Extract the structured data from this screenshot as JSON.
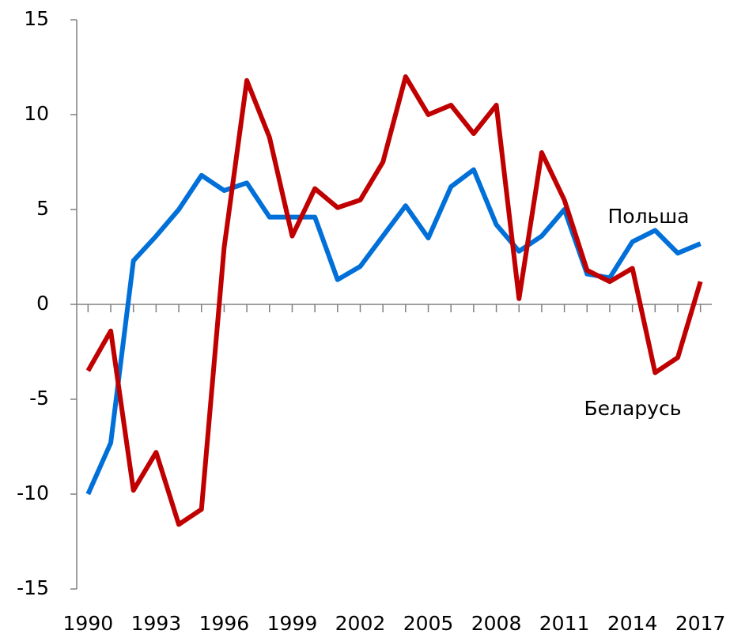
{
  "chart_data": {
    "type": "line",
    "x": [
      1990,
      1991,
      1992,
      1993,
      1994,
      1995,
      1996,
      1997,
      1998,
      1999,
      2000,
      2001,
      2002,
      2003,
      2004,
      2005,
      2006,
      2007,
      2008,
      2009,
      2010,
      2011,
      2012,
      2013,
      2014,
      2015,
      2016,
      2017
    ],
    "series": [
      {
        "name": "Польша",
        "color": "#0070d8",
        "values": [
          -10,
          -7.3,
          2.3,
          3.6,
          5.0,
          6.8,
          6.0,
          6.4,
          4.6,
          4.6,
          4.6,
          1.3,
          2.0,
          3.6,
          5.2,
          3.5,
          6.2,
          7.1,
          4.2,
          2.8,
          3.6,
          5.0,
          1.6,
          1.4,
          3.3,
          3.9,
          2.7,
          3.2
        ]
      },
      {
        "name": "Беларусь",
        "color": "#c00000",
        "values": [
          -3.5,
          -1.4,
          -9.8,
          -7.8,
          -11.6,
          -10.8,
          3.0,
          11.8,
          8.8,
          3.6,
          6.1,
          5.1,
          5.5,
          7.5,
          12.0,
          10.0,
          10.5,
          9.0,
          10.5,
          0.3,
          8.0,
          5.5,
          1.8,
          1.2,
          1.9,
          -3.6,
          -2.8,
          1.2
        ]
      }
    ],
    "xlim": [
      1989.5,
      2017.5
    ],
    "xticks": [
      1990,
      1993,
      1996,
      1999,
      2002,
      2005,
      2008,
      2011,
      2014,
      2017
    ],
    "ylim": [
      -15,
      15
    ],
    "yticks": [
      -15,
      -10,
      -5,
      0,
      5,
      10,
      15
    ]
  }
}
